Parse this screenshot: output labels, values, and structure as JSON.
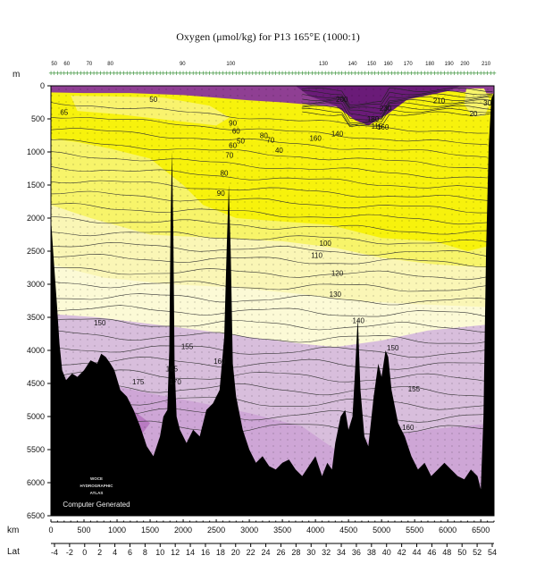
{
  "title": "Oxygen (μmol/kg) for P13 165°E (1000:1)",
  "watermark": {
    "logo_lines": [
      "WOCE",
      "HYDROGRAPHIC",
      "ATLAS"
    ],
    "caption": "Computer Generated"
  },
  "chart_data": {
    "type": "contour-section",
    "title": "Oxygen (μmol/kg) for P13 165°E (1000:1)",
    "units": {
      "depth": "m",
      "distance": "km",
      "latitude": "Lat"
    },
    "depth_axis": {
      "range": [
        0,
        6500
      ],
      "ticks": [
        0,
        500,
        1000,
        1500,
        2000,
        2500,
        3000,
        3500,
        4000,
        4500,
        5000,
        5500,
        6000,
        6500
      ]
    },
    "distance_axis": {
      "range": [
        0,
        6700
      ],
      "ticks": [
        0,
        500,
        1000,
        1500,
        2000,
        2500,
        3000,
        3500,
        4000,
        4500,
        5000,
        5500,
        6000,
        6500
      ]
    },
    "latitude_axis": {
      "ticks": [
        "-4",
        "-2",
        "0",
        "2",
        "4",
        "6",
        "8",
        "10",
        "12",
        "14",
        "16",
        "18",
        "20",
        "22",
        "24",
        "26",
        "28",
        "30",
        "32",
        "34",
        "36",
        "38",
        "40",
        "42",
        "44",
        "46",
        "48",
        "50",
        "52",
        "54"
      ]
    },
    "station_labels": [
      {
        "km": 50,
        "label": "50"
      },
      {
        "km": 240,
        "label": "60"
      },
      {
        "km": 580,
        "label": "70"
      },
      {
        "km": 900,
        "label": "80"
      },
      {
        "km": 1990,
        "label": "90"
      },
      {
        "km": 2720,
        "label": "100"
      },
      {
        "km": 4120,
        "label": "130"
      },
      {
        "km": 4560,
        "label": "140"
      },
      {
        "km": 4850,
        "label": "150"
      },
      {
        "km": 5100,
        "label": "160"
      },
      {
        "km": 5400,
        "label": "170"
      },
      {
        "km": 5730,
        "label": "180"
      },
      {
        "km": 6020,
        "label": "190"
      },
      {
        "km": 6260,
        "label": "200"
      },
      {
        "km": 6580,
        "label": "210"
      }
    ],
    "contour_labels": [
      {
        "km": 1550,
        "depth": 200,
        "label": "50"
      },
      {
        "km": 200,
        "depth": 400,
        "label": "65"
      },
      {
        "km": 2750,
        "depth": 560,
        "label": "90"
      },
      {
        "km": 2800,
        "depth": 680,
        "label": "60"
      },
      {
        "km": 2870,
        "depth": 830,
        "label": "50"
      },
      {
        "km": 2750,
        "depth": 900,
        "label": "60"
      },
      {
        "km": 2700,
        "depth": 1050,
        "label": "70"
      },
      {
        "km": 3220,
        "depth": 750,
        "label": "80"
      },
      {
        "km": 3320,
        "depth": 820,
        "label": "70"
      },
      {
        "km": 3450,
        "depth": 970,
        "label": "40"
      },
      {
        "km": 2620,
        "depth": 1320,
        "label": "80"
      },
      {
        "km": 2570,
        "depth": 1620,
        "label": "90"
      },
      {
        "km": 4400,
        "depth": 200,
        "label": "200"
      },
      {
        "km": 4330,
        "depth": 720,
        "label": "140"
      },
      {
        "km": 4000,
        "depth": 790,
        "label": "160"
      },
      {
        "km": 4870,
        "depth": 500,
        "label": "180"
      },
      {
        "km": 4930,
        "depth": 610,
        "label": "115"
      },
      {
        "km": 5020,
        "depth": 620,
        "label": "160"
      },
      {
        "km": 5060,
        "depth": 340,
        "label": "230"
      },
      {
        "km": 5870,
        "depth": 220,
        "label": "210"
      },
      {
        "km": 6600,
        "depth": 260,
        "label": "30"
      },
      {
        "km": 6390,
        "depth": 420,
        "label": "20"
      },
      {
        "km": 4150,
        "depth": 2380,
        "label": "100"
      },
      {
        "km": 4020,
        "depth": 2560,
        "label": "110"
      },
      {
        "km": 4330,
        "depth": 2830,
        "label": "120"
      },
      {
        "km": 4300,
        "depth": 3150,
        "label": "130"
      },
      {
        "km": 4650,
        "depth": 3550,
        "label": "140"
      },
      {
        "km": 740,
        "depth": 3580,
        "label": "150"
      },
      {
        "km": 2060,
        "depth": 3940,
        "label": "155"
      },
      {
        "km": 5170,
        "depth": 3960,
        "label": "150"
      },
      {
        "km": 2550,
        "depth": 4160,
        "label": "160"
      },
      {
        "km": 1830,
        "depth": 4280,
        "label": "165"
      },
      {
        "km": 1320,
        "depth": 4470,
        "label": "175"
      },
      {
        "km": 1880,
        "depth": 4470,
        "label": "170"
      },
      {
        "km": 5490,
        "depth": 4580,
        "label": "155"
      },
      {
        "km": 5400,
        "depth": 5160,
        "label": "160"
      }
    ],
    "color_bands": [
      {
        "range": "< 80",
        "color": "#f7f20c"
      },
      {
        "range": "80-100",
        "color": "#f7f46a"
      },
      {
        "range": "100-120",
        "color": "#faf6b6"
      },
      {
        "range": "120-140",
        "color": "#fcfad6"
      },
      {
        "range": "140-160",
        "color": "#d8bedc"
      },
      {
        "range": "160-180",
        "color": "#cea6d6"
      },
      {
        "range": "> 180",
        "color": "#8f3f93"
      },
      {
        "range": "> 220",
        "color": "#6a1b78"
      }
    ],
    "colors": {
      "bathymetry": "#000000",
      "background": "#ffffff"
    }
  }
}
